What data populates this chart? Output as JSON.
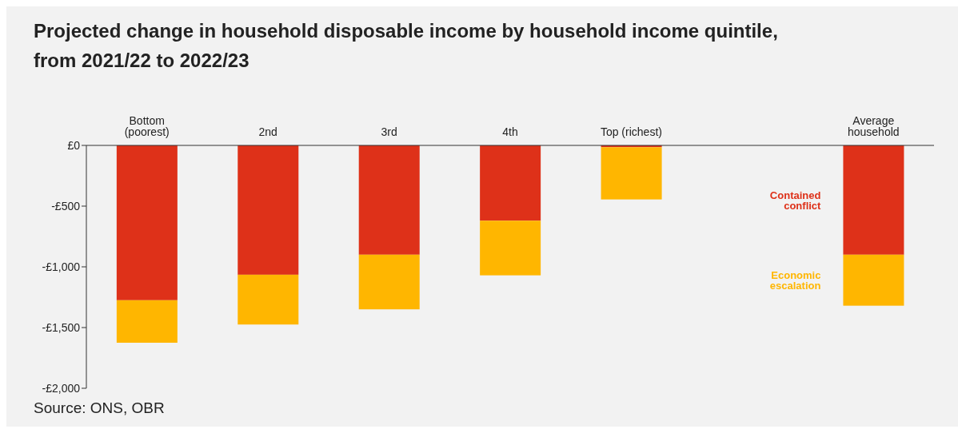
{
  "chart_data": {
    "type": "bar",
    "title": "Projected change in household disposable income by household income quintile, from 2021/22 to 2022/23",
    "categories": [
      "Bottom (poorest)",
      "2nd",
      "3rd",
      "4th",
      "Top (richest)",
      null,
      "Average household"
    ],
    "stacked": true,
    "series": [
      {
        "name": "Contained conflict",
        "color": "#de3119",
        "values": [
          -1275,
          -1065,
          -900,
          -620,
          -15,
          null,
          -900
        ]
      },
      {
        "name": "Economic escalation",
        "color": "#ffb600",
        "values": [
          -350,
          -410,
          -450,
          -450,
          -430,
          null,
          -420
        ]
      }
    ],
    "ylim": [
      -2000,
      0
    ],
    "yticks": [
      {
        "value": 0,
        "label": "£0"
      },
      {
        "value": -500,
        "label": "-£500"
      },
      {
        "value": -1000,
        "label": "-£1,000"
      },
      {
        "value": -1500,
        "label": "-£1,500"
      },
      {
        "value": -2000,
        "label": "-£2,000"
      }
    ],
    "grid": false,
    "annotations": [
      "Source: ONS, OBR"
    ]
  }
}
